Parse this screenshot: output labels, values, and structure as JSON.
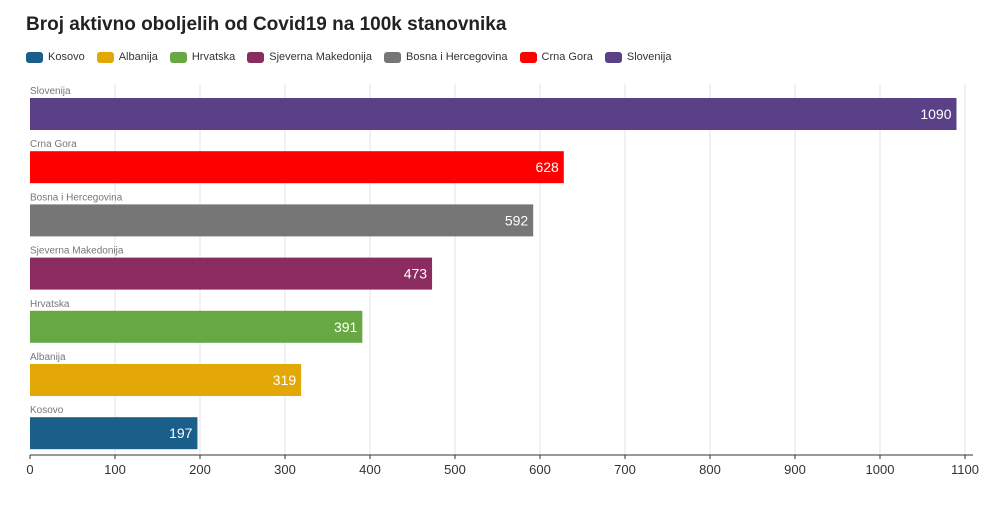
{
  "title": "Broj aktivno oboljelih od Covid19 na 100k stanovnika",
  "legend": [
    {
      "label": "Kosovo",
      "color": "#1a5e8a"
    },
    {
      "label": "Albanija",
      "color": "#e3a707"
    },
    {
      "label": "Hrvatska",
      "color": "#67a844"
    },
    {
      "label": "Sjeverna Makedonija",
      "color": "#8b2c60"
    },
    {
      "label": "Bosna i Hercegovina",
      "color": "#767676"
    },
    {
      "label": "Crna Gora",
      "color": "#ff0000"
    },
    {
      "label": "Slovenija",
      "color": "#5a4187"
    }
  ],
  "chart_data": {
    "type": "bar",
    "orientation": "horizontal",
    "title": "Broj aktivno oboljelih od Covid19 na 100k stanovnika",
    "categories": [
      "Slovenija",
      "Crna Gora",
      "Bosna i Hercegovina",
      "Sjeverna Makedonija",
      "Hrvatska",
      "Albanija",
      "Kosovo"
    ],
    "values": [
      1090,
      628,
      592,
      473,
      391,
      319,
      197
    ],
    "colors": [
      "#5a4187",
      "#ff0000",
      "#767676",
      "#8b2c60",
      "#67a844",
      "#e3a707",
      "#1a5e8a"
    ],
    "xlim": [
      0,
      1100
    ],
    "xticks": [
      0,
      100,
      200,
      300,
      400,
      500,
      600,
      700,
      800,
      900,
      1000,
      1100
    ],
    "xlabel": "",
    "ylabel": "",
    "grid": true,
    "legend_position": "top-left"
  }
}
